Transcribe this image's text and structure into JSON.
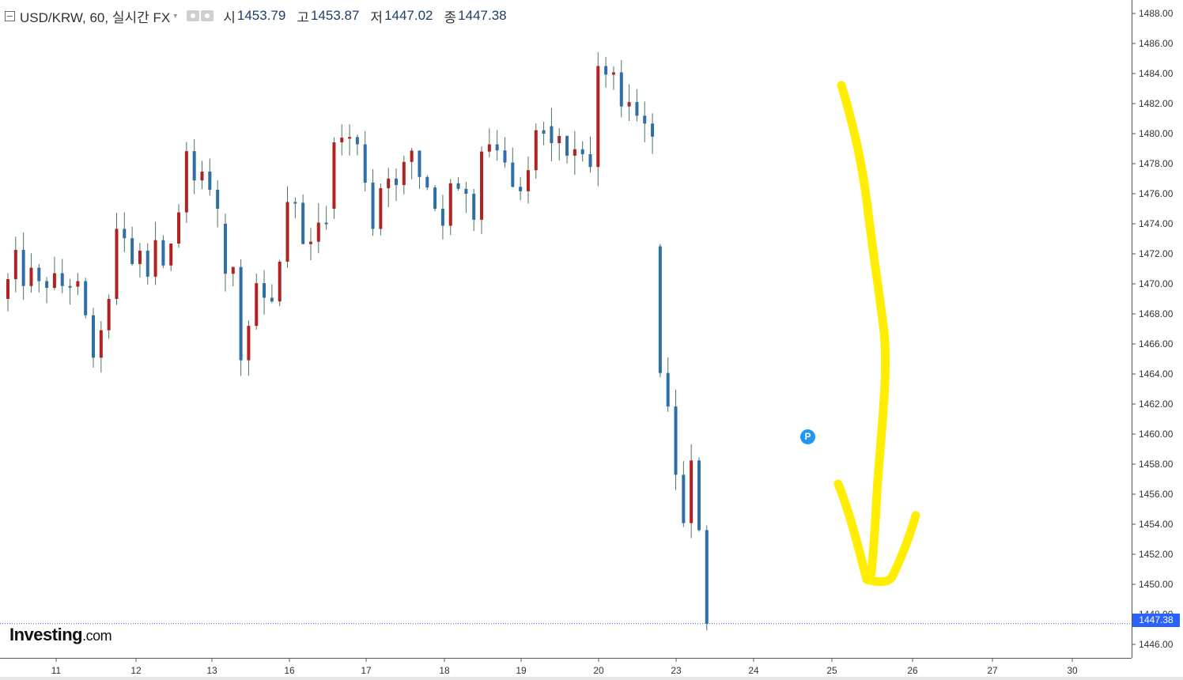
{
  "header": {
    "title": "USD/KRW, 60, 실시간 FX",
    "open_label": "시",
    "open": "1453.79",
    "high_label": "고",
    "high": "1453.87",
    "low_label": "저",
    "low": "1447.02",
    "close_label": "종",
    "close": "1447.38"
  },
  "logo": {
    "text": "Investing",
    "domain": ".com"
  },
  "marker": {
    "label": "P"
  },
  "last_price_label": "1447.38",
  "colors": {
    "up": "#b22222",
    "down": "#2e6fa7",
    "wick": "#4a7561",
    "annotation": "#ffee00",
    "price_line": "#2962ff"
  },
  "chart_data": {
    "type": "candlestick",
    "symbol": "USD/KRW",
    "interval": "60",
    "x_tick_labels": [
      "11",
      "12",
      "13",
      "16",
      "17",
      "18",
      "19",
      "20",
      "23",
      "24",
      "25",
      "26",
      "27",
      "30"
    ],
    "y_ticks": [
      "1446.00",
      "1448.00",
      "1450.00",
      "1452.00",
      "1454.00",
      "1456.00",
      "1458.00",
      "1460.00",
      "1462.00",
      "1464.00",
      "1466.00",
      "1468.00",
      "1470.00",
      "1472.00",
      "1474.00",
      "1476.00",
      "1478.00",
      "1480.00",
      "1482.00",
      "1484.00",
      "1486.00",
      "1488.00"
    ],
    "ylim": [
      1445.3,
      1488.3
    ],
    "last_price": 1447.38,
    "annotation": "hand-drawn yellow arrow pointing down",
    "day_segments": [
      {
        "x0": 0,
        "x1": 14,
        "pts": [
          1469.0,
          1470.0,
          1472.0,
          1470.0,
          1471.0,
          1470.0,
          1469.6,
          1470.6,
          1470.0,
          1469.8,
          1470.2,
          1469.6,
          1467.0,
          1465.0,
          1466.5,
          1469.0
        ]
      },
      {
        "x0": 14,
        "x1": 28,
        "pts": [
          1469.0,
          1473.0,
          1473.5,
          1473.0,
          1472.5,
          1471.0,
          1472.0,
          1469.0,
          1472.5,
          1473.0,
          1472.0,
          1471.5,
          1472.5,
          1473.0,
          1477.0,
          1478.5,
          1477.0,
          1476.0,
          1478.0,
          1476.5,
          1476.0,
          1475.0
        ]
      },
      {
        "x0": 28,
        "x1": 42,
        "pts": [
          1474.0,
          1470.0,
          1472.0,
          1471.0,
          1464.5,
          1465.0,
          1467.0,
          1469.0,
          1470.0,
          1469.0,
          1469.5,
          1468.0,
          1471.0,
          1475.0,
          1476.0,
          1475.0,
          1474.0,
          1471.5,
          1473.0,
          1474.0,
          1473.5,
          1474.0
        ]
      },
      {
        "x0": 42,
        "x1": 56,
        "pts": [
          1475.0,
          1480.0,
          1479.5,
          1480.0,
          1479.0,
          1479.3,
          1473.0,
          1475.0,
          1478.0,
          1477.0,
          1476.0,
          1478.5,
          1479.0,
          1477.0,
          1476.5,
          1475.0
        ]
      },
      {
        "x0": 56,
        "x1": 70,
        "pts": [
          1475.0,
          1473.0,
          1477.0,
          1476.5,
          1475.0,
          1476.0,
          1474.0,
          1479.0,
          1479.5,
          1479.0,
          1478.0,
          1477.5,
          1476.0,
          1477.0,
          1478.0,
          1480.5,
          1480.0
        ]
      },
      {
        "x0": 70,
        "x1": 84,
        "pts": [
          1480.5,
          1479.5,
          1480.0,
          1479.0,
          1478.5,
          1479.5,
          1479.0,
          1478.0,
          1484.0,
          1483.5,
          1484.3,
          1482.0,
          1481.3,
          1483.5,
          1481.0,
          1480.2,
          1479.8
        ]
      },
      {
        "x0": 84,
        "x1": 91,
        "pts": [
          1472.5,
          1465.2,
          1463.8,
          1461.0,
          1463.7,
          1455.0,
          1453.0,
          1456.0,
          1458.2,
          1454.0,
          1453.79,
          1447.38
        ]
      }
    ]
  }
}
